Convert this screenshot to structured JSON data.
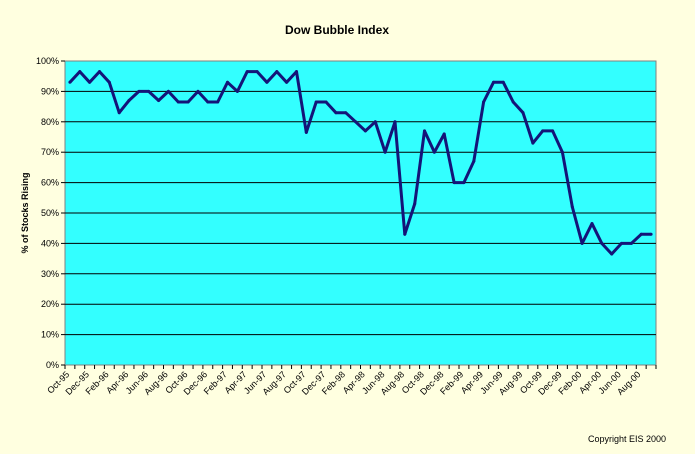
{
  "chart_data": {
    "type": "line",
    "title": "Dow Bubble Index",
    "ylabel": "% of Stocks Rising",
    "xlabel": "",
    "ylim": [
      0,
      100
    ],
    "y_ticks": [
      "0%",
      "10%",
      "20%",
      "30%",
      "40%",
      "50%",
      "60%",
      "70%",
      "80%",
      "90%",
      "100%"
    ],
    "y_tick_values": [
      0,
      10,
      20,
      30,
      40,
      50,
      60,
      70,
      80,
      90,
      100
    ],
    "x_tick_labels": [
      "Oct-95",
      "Dec-95",
      "Feb-96",
      "Apr-96",
      "Jun-96",
      "Aug-96",
      "Oct-96",
      "Dec-96",
      "Feb-97",
      "Apr-97",
      "Jun-97",
      "Aug-97",
      "Oct-97",
      "Dec-97",
      "Feb-98",
      "Apr-98",
      "Jun-98",
      "Aug-98",
      "Oct-98",
      "Dec-98",
      "Feb-99",
      "Apr-99",
      "Jun-99",
      "Aug-99",
      "Oct-99",
      "Dec-99",
      "Feb-00",
      "Apr-00",
      "Jun-00",
      "Aug-00"
    ],
    "x": [
      "Oct-95",
      "Nov-95",
      "Dec-95",
      "Jan-96",
      "Feb-96",
      "Mar-96",
      "Apr-96",
      "May-96",
      "Jun-96",
      "Jul-96",
      "Aug-96",
      "Sep-96",
      "Oct-96",
      "Nov-96",
      "Dec-96",
      "Jan-97",
      "Feb-97",
      "Mar-97",
      "Apr-97",
      "May-97",
      "Jun-97",
      "Jul-97",
      "Aug-97",
      "Sep-97",
      "Oct-97",
      "Nov-97",
      "Dec-97",
      "Jan-98",
      "Feb-98",
      "Mar-98",
      "Apr-98",
      "May-98",
      "Jun-98",
      "Jul-98",
      "Aug-98",
      "Sep-98",
      "Oct-98",
      "Nov-98",
      "Dec-98",
      "Jan-99",
      "Feb-99",
      "Mar-99",
      "Apr-99",
      "May-99",
      "Jun-99",
      "Jul-99",
      "Aug-99",
      "Sep-99",
      "Oct-99",
      "Nov-99",
      "Dec-99",
      "Jan-00",
      "Feb-00",
      "Mar-00",
      "Apr-00",
      "May-00",
      "Jun-00",
      "Jul-00",
      "Aug-00",
      "Sep-00"
    ],
    "series": [
      {
        "values": [
          93,
          96.5,
          93,
          96.5,
          93,
          83,
          87,
          90,
          90,
          87,
          90,
          86.5,
          86.5,
          90,
          86.5,
          86.5,
          93,
          90,
          96.5,
          96.5,
          93,
          96.5,
          93,
          96.5,
          76.5,
          86.5,
          86.5,
          83,
          83,
          80,
          77,
          80,
          70,
          80,
          43,
          53,
          77,
          70,
          76,
          60,
          60,
          67,
          86.5,
          93,
          93,
          86.5,
          83,
          73,
          77,
          77,
          70,
          52,
          40,
          46.5,
          40,
          36.5,
          40,
          40,
          43,
          43
        ]
      }
    ],
    "colors": {
      "plot_background": "#33ffff",
      "page_background": "#ffffe0",
      "line": "#141478",
      "gridline": "#000000"
    },
    "grid": true,
    "legend": "none"
  },
  "footer": {
    "copyright": "Copyright EIS 2000"
  }
}
